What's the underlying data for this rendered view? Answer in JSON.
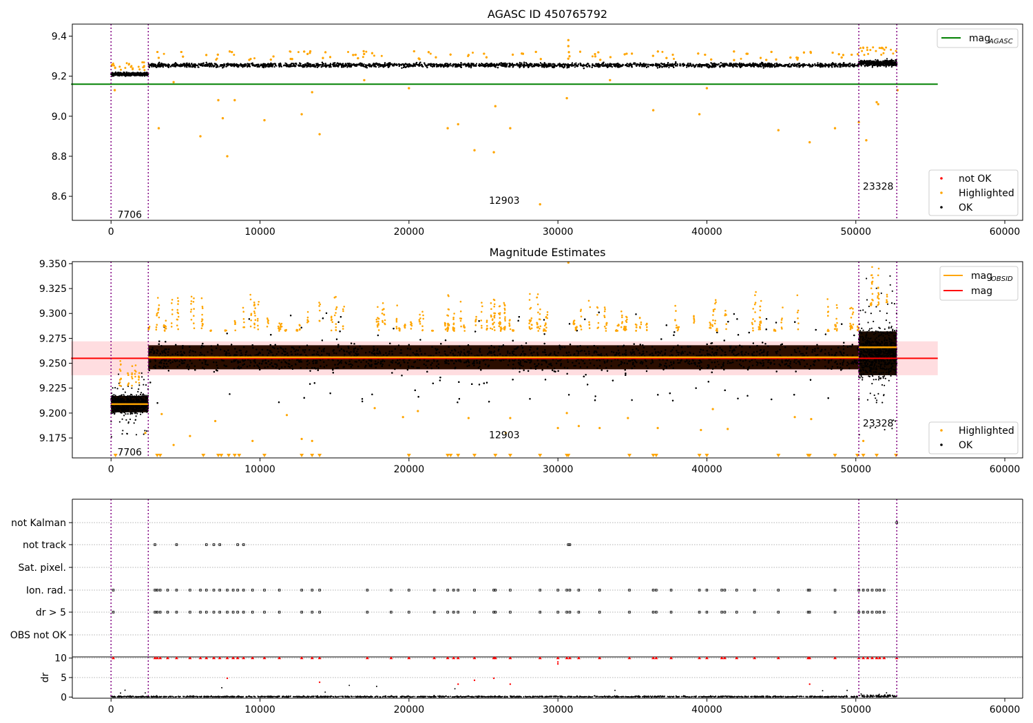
{
  "chart_data": [
    {
      "type": "scatter",
      "title": "AGASC ID 450765792",
      "xlim": [
        -2600,
        61200
      ],
      "ylim": [
        8.48,
        9.46
      ],
      "xticks": [
        0,
        10000,
        20000,
        30000,
        40000,
        50000,
        60000
      ],
      "yticks": [
        8.6,
        8.8,
        9.0,
        9.2,
        9.4
      ],
      "ytick_labels": [
        "8.6",
        "8.8",
        "9.0",
        "9.2",
        "9.4"
      ],
      "legend_upper": {
        "placement": "top-right",
        "entries": [
          {
            "label": "mag",
            "sub": "AGASC",
            "color": "#008000",
            "kind": "line"
          }
        ]
      },
      "legend_lower": {
        "placement": "bottom-right",
        "entries": [
          {
            "label": "not OK",
            "color": "#ff0000",
            "kind": "dot"
          },
          {
            "label": "Highlighted",
            "color": "#ffa500",
            "kind": "dot"
          },
          {
            "label": "OK",
            "color": "#000000",
            "kind": "dot"
          }
        ]
      },
      "mag_agasc": 9.16,
      "reference_line_x": [
        0,
        55500
      ],
      "obsid_boundaries": [
        0,
        2500,
        50200,
        52750
      ],
      "obsid_labels": [
        {
          "text": "7706",
          "x": 1250,
          "y": 8.51
        },
        {
          "text": "12903",
          "x": 26400,
          "y": 8.58
        },
        {
          "text": "23328",
          "x": 51500,
          "y": 8.65
        }
      ],
      "segments_ok": [
        {
          "x": [
            0,
            2500
          ],
          "mean": 9.21,
          "half_width": 0.02
        },
        {
          "x": [
            2500,
            50200
          ],
          "mean": 9.255,
          "half_width": 0.025
        },
        {
          "x": [
            50200,
            52750
          ],
          "mean": 9.265,
          "half_width": 0.035
        }
      ],
      "highlighted_points": [
        [
          250,
          9.13
        ],
        [
          3200,
          8.94
        ],
        [
          6000,
          8.9
        ],
        [
          7200,
          9.08
        ],
        [
          7500,
          8.99
        ],
        [
          7800,
          8.8
        ],
        [
          8300,
          9.08
        ],
        [
          10300,
          8.98
        ],
        [
          12800,
          9.01
        ],
        [
          13500,
          9.12
        ],
        [
          14000,
          8.91
        ],
        [
          20000,
          9.14
        ],
        [
          22600,
          8.94
        ],
        [
          23300,
          8.96
        ],
        [
          24400,
          8.83
        ],
        [
          25700,
          8.82
        ],
        [
          25800,
          9.05
        ],
        [
          26800,
          8.94
        ],
        [
          28800,
          8.56
        ],
        [
          30600,
          9.09
        ],
        [
          30700,
          9.35
        ],
        [
          30700,
          9.38
        ],
        [
          36400,
          9.03
        ],
        [
          39500,
          9.01
        ],
        [
          40000,
          9.14
        ],
        [
          44800,
          8.93
        ],
        [
          46900,
          8.87
        ],
        [
          48600,
          8.94
        ],
        [
          50200,
          8.97
        ],
        [
          50700,
          8.88
        ],
        [
          51400,
          9.07
        ],
        [
          51500,
          9.06
        ],
        [
          52800,
          9.13
        ],
        [
          4200,
          9.17
        ],
        [
          17000,
          9.18
        ],
        [
          33500,
          9.18
        ]
      ]
    },
    {
      "type": "scatter",
      "title": "Magnitude Estimates",
      "xlim": [
        -2600,
        61200
      ],
      "ylim": [
        9.155,
        9.352
      ],
      "xticks": [
        0,
        10000,
        20000,
        30000,
        40000,
        50000,
        60000
      ],
      "yticks": [
        9.175,
        9.2,
        9.225,
        9.25,
        9.275,
        9.3,
        9.325,
        9.35
      ],
      "ytick_labels": [
        "9.175",
        "9.200",
        "9.225",
        "9.250",
        "9.275",
        "9.300",
        "9.325",
        "9.350"
      ],
      "legend_upper": {
        "placement": "top-right",
        "entries": [
          {
            "label": "mag",
            "sub": "OBSID",
            "color": "#ffa500",
            "kind": "line"
          },
          {
            "label": "mag",
            "sub": "",
            "color": "#ff0000",
            "kind": "line"
          }
        ]
      },
      "legend_lower": {
        "placement": "bottom-right",
        "entries": [
          {
            "label": "Highlighted",
            "color": "#ffa500",
            "kind": "dot"
          },
          {
            "label": "OK",
            "color": "#000000",
            "kind": "dot"
          }
        ]
      },
      "mag": 9.255,
      "mag_band": [
        9.238,
        9.272
      ],
      "reference_line_x": [
        0,
        55500
      ],
      "obsid_boundaries": [
        0,
        2500,
        50200,
        52750
      ],
      "obsid_labels": [
        {
          "text": "7706",
          "x": 1250,
          "y": 9.161
        },
        {
          "text": "12903",
          "x": 26400,
          "y": 9.178
        },
        {
          "text": "23328",
          "x": 51500,
          "y": 9.19
        }
      ],
      "obsid_mags": [
        {
          "x": [
            0,
            2500
          ],
          "mag": 9.209
        },
        {
          "x": [
            2500,
            50200
          ],
          "mag": 9.256
        },
        {
          "x": [
            50200,
            52750
          ],
          "mag": 9.266
        }
      ],
      "segments_ok": [
        {
          "x": [
            0,
            2500
          ],
          "mean": 9.209,
          "half_width": 0.015,
          "spike": 0.03
        },
        {
          "x": [
            2500,
            50200
          ],
          "mean": 9.256,
          "half_width": 0.022,
          "spike": 0.04
        },
        {
          "x": [
            50200,
            52750
          ],
          "mean": 9.26,
          "half_width": 0.04,
          "spike": 0.07
        }
      ],
      "clipped_highlighted_x": [
        300,
        3100,
        3300,
        6200,
        7200,
        7400,
        7900,
        8300,
        8600,
        10300,
        12800,
        13500,
        14000,
        20000,
        22600,
        22800,
        23300,
        24400,
        25800,
        26800,
        28800,
        30600,
        30700,
        34800,
        36400,
        36600,
        39500,
        40000,
        44800,
        46800,
        46900,
        48600,
        50100,
        50500,
        51400,
        52700
      ]
    },
    {
      "type": "table",
      "flag_rows": [
        "not Kalman",
        "not track",
        "Sat. pixel.",
        "Ion. rad.",
        "dr > 5",
        "OBS not OK"
      ],
      "flag_points": {
        "not track": [
          2950,
          4400,
          6400,
          6900,
          7300,
          8500,
          8900,
          30700,
          30800
        ],
        "Ion. rad.": [
          150,
          2950,
          3100,
          3300,
          3800,
          4400,
          5300,
          6000,
          6400,
          6900,
          7300,
          7800,
          8200,
          8500,
          8900,
          9500,
          10300,
          11300,
          12800,
          13500,
          14000,
          17200,
          18800,
          20000,
          21700,
          22600,
          23000,
          23300,
          24400,
          25700,
          25800,
          26800,
          28800,
          30000,
          30600,
          30800,
          31400,
          32800,
          34800,
          36400,
          36600,
          37600,
          39500,
          40000,
          41000,
          41200,
          42000,
          43200,
          44800,
          46800,
          46900,
          48600,
          50200,
          50500,
          50800,
          51100,
          51400,
          51600,
          51900
        ],
        "dr > 5": [
          150,
          2950,
          3100,
          3300,
          3800,
          4400,
          5300,
          6000,
          6400,
          6900,
          7300,
          7800,
          8200,
          8500,
          8900,
          9500,
          10300,
          11300,
          12800,
          13500,
          14000,
          17200,
          18800,
          20000,
          21700,
          22600,
          23000,
          23300,
          24400,
          25700,
          25800,
          26800,
          28800,
          30000,
          30600,
          30800,
          31400,
          32800,
          34800,
          36400,
          36600,
          37600,
          39500,
          40000,
          41000,
          41200,
          42000,
          43200,
          44800,
          46800,
          46900,
          48600,
          50200,
          50500,
          50800,
          51100,
          51400,
          51600,
          51900
        ],
        "not Kalman": [
          52750
        ]
      },
      "xlim": [
        -2600,
        61200
      ],
      "obsid_boundaries": [
        0,
        2500,
        50200,
        52750
      ]
    },
    {
      "type": "scatter",
      "ylabel": "dr",
      "xlim": [
        -2600,
        61200
      ],
      "ylim": [
        -0.3,
        10.3
      ],
      "xticks": [
        0,
        10000,
        20000,
        30000,
        40000,
        50000,
        60000
      ],
      "yticks": [
        0,
        5,
        10
      ],
      "ytick_labels": [
        "0",
        "5",
        "10"
      ],
      "obsid_boundaries": [
        0,
        2500,
        50200,
        52750
      ],
      "clipped_x": [
        150,
        2950,
        3100,
        3300,
        3800,
        4400,
        5300,
        6000,
        6400,
        6900,
        7300,
        7800,
        8200,
        8500,
        8900,
        9500,
        10300,
        11300,
        12800,
        13500,
        14000,
        17200,
        18800,
        20000,
        21700,
        22600,
        23000,
        23300,
        24400,
        25700,
        25800,
        26800,
        28800,
        30000,
        30600,
        30800,
        31400,
        32800,
        34800,
        36400,
        36600,
        37600,
        39500,
        40000,
        41000,
        41200,
        42000,
        43200,
        44800,
        46800,
        46900,
        48600,
        50200,
        50500,
        50800,
        51100,
        51400,
        51600,
        51900,
        52750
      ],
      "mid_points": [
        [
          7800,
          4.8
        ],
        [
          14000,
          3.8
        ],
        [
          23300,
          3.3
        ],
        [
          24400,
          4.3
        ],
        [
          25700,
          4.8
        ],
        [
          26800,
          3.3
        ],
        [
          30000,
          8.5
        ],
        [
          30000,
          9.0
        ],
        [
          46900,
          3.3
        ]
      ],
      "baseline_ok": [
        0,
        52750
      ],
      "baseline_level": 0.4
    }
  ]
}
